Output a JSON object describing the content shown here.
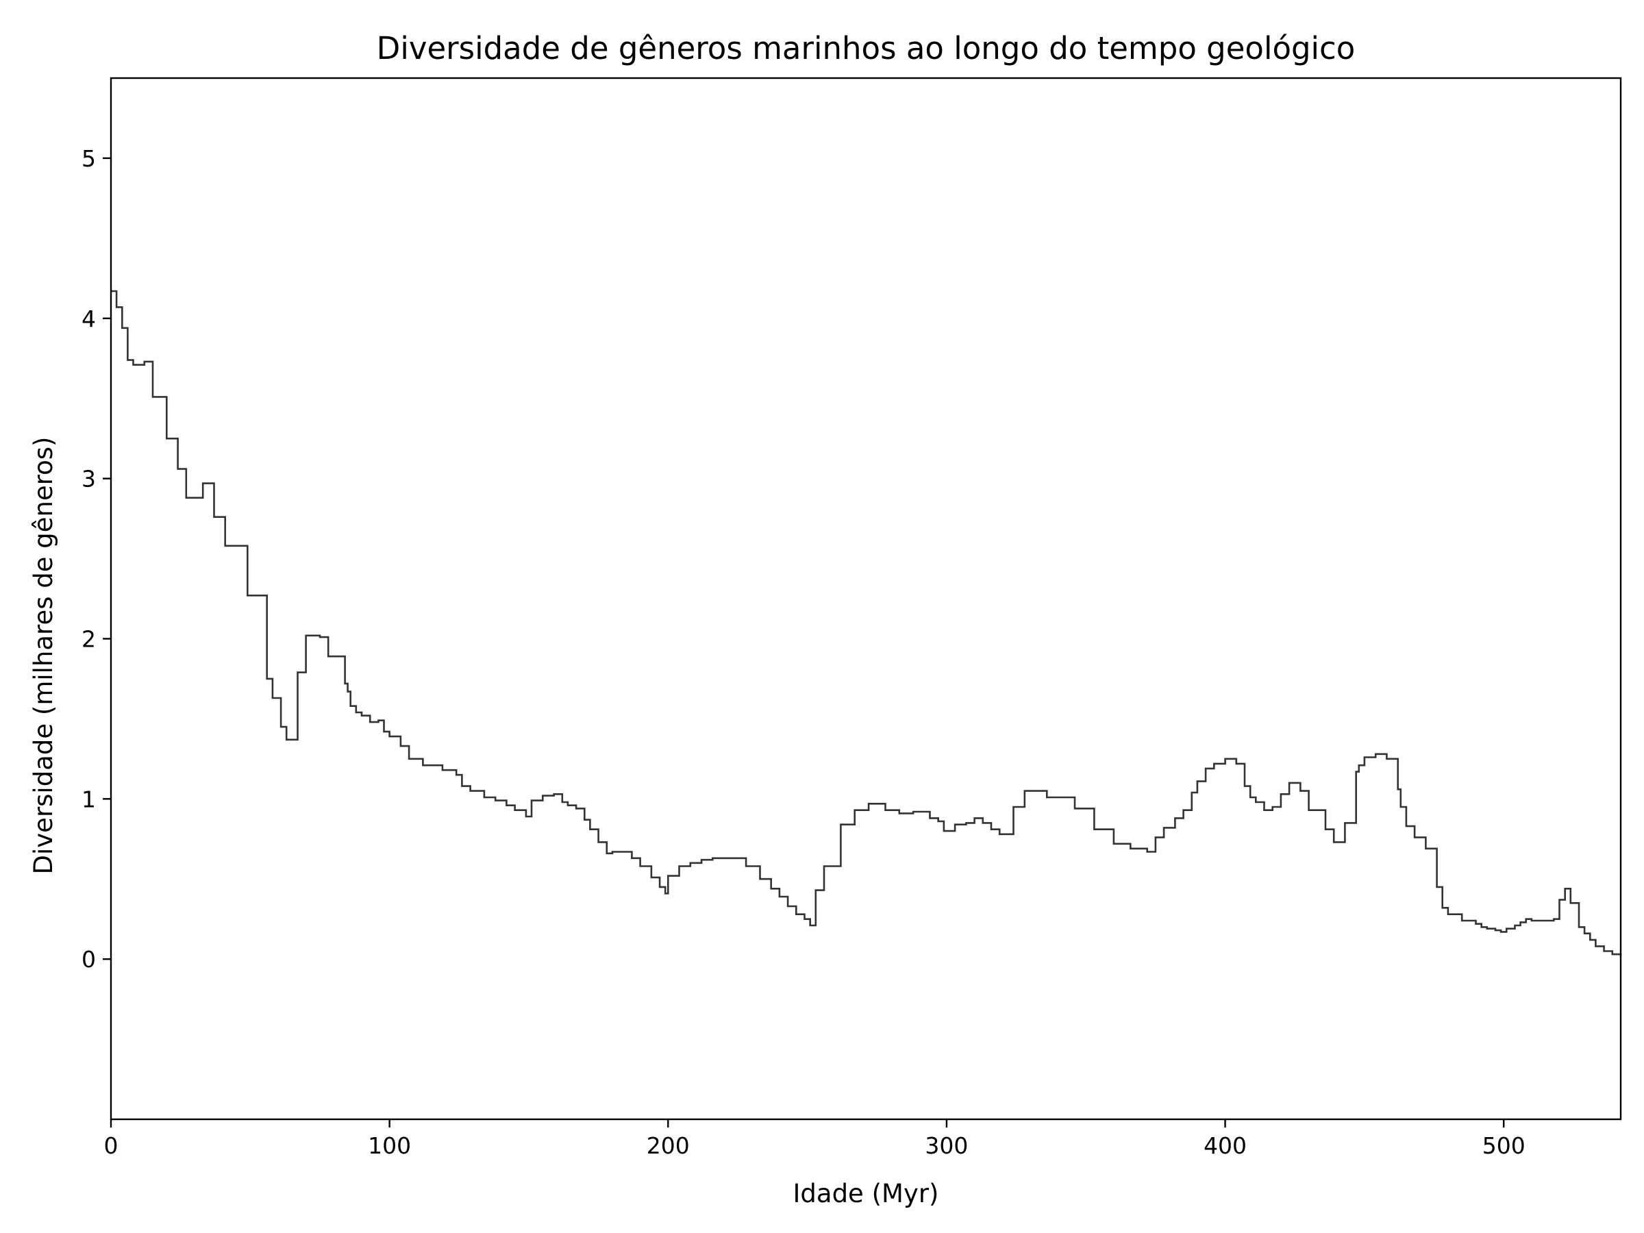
{
  "chart_data": {
    "type": "line",
    "drawstyle": "steps",
    "title": "Diversidade de gêneros marinhos ao longo do tempo geológico",
    "xlabel": "Idade (Myr)",
    "ylabel": "Diversidade (milhares de gêneros)",
    "xlim": [
      0,
      542
    ],
    "ylim": [
      -1.0,
      5.5
    ],
    "xticks": [
      0,
      100,
      200,
      300,
      400,
      500
    ],
    "yticks": [
      0,
      1,
      2,
      3,
      4,
      5
    ],
    "grid": false,
    "line_color": "#333333",
    "series": [
      {
        "x": [
          0,
          2,
          4,
          6,
          8,
          10,
          12,
          15,
          20,
          24,
          27,
          33,
          37,
          41,
          49,
          56,
          58,
          61,
          63,
          67,
          70,
          75,
          78,
          84,
          85,
          86,
          88,
          90,
          93,
          96,
          98,
          100,
          104,
          107,
          112,
          119,
          124,
          126,
          129,
          134,
          138,
          142,
          145,
          149,
          151,
          155,
          159,
          162,
          164,
          167,
          170,
          172,
          175,
          178,
          180,
          187,
          190,
          194,
          197,
          199,
          200,
          204,
          208,
          212,
          216,
          221,
          228,
          233,
          237,
          240,
          243,
          246,
          249,
          251,
          253,
          256,
          262,
          267,
          272,
          278,
          283,
          288,
          294,
          297,
          299,
          303,
          307,
          310,
          313,
          316,
          319,
          324,
          328,
          336,
          346,
          353,
          360,
          366,
          372,
          375,
          378,
          382,
          385,
          388,
          390,
          393,
          396,
          400,
          404,
          407,
          409,
          411,
          414,
          417,
          420,
          423,
          427,
          430,
          436,
          439,
          443,
          447,
          448,
          450,
          454,
          458,
          462,
          463,
          465,
          468,
          472,
          476,
          478,
          480,
          485,
          490,
          492,
          494,
          497,
          499,
          501,
          504,
          506,
          508,
          510,
          518,
          520,
          522,
          524,
          527,
          529,
          531,
          533,
          536,
          539,
          542
        ],
        "y": [
          4.17,
          4.07,
          3.94,
          3.74,
          3.71,
          3.71,
          3.73,
          3.51,
          3.25,
          3.06,
          2.88,
          2.97,
          2.76,
          2.58,
          2.27,
          1.75,
          1.63,
          1.45,
          1.37,
          1.79,
          2.02,
          2.01,
          1.89,
          1.72,
          1.67,
          1.58,
          1.54,
          1.52,
          1.48,
          1.49,
          1.42,
          1.39,
          1.33,
          1.25,
          1.21,
          1.18,
          1.15,
          1.08,
          1.05,
          1.01,
          0.99,
          0.96,
          0.93,
          0.89,
          0.99,
          1.02,
          1.03,
          0.98,
          0.96,
          0.94,
          0.87,
          0.81,
          0.73,
          0.66,
          0.67,
          0.63,
          0.58,
          0.51,
          0.45,
          0.41,
          0.52,
          0.58,
          0.6,
          0.62,
          0.63,
          0.63,
          0.58,
          0.5,
          0.44,
          0.39,
          0.33,
          0.28,
          0.25,
          0.21,
          0.43,
          0.58,
          0.84,
          0.93,
          0.97,
          0.93,
          0.91,
          0.92,
          0.88,
          0.86,
          0.8,
          0.84,
          0.85,
          0.88,
          0.85,
          0.81,
          0.78,
          0.95,
          1.05,
          1.01,
          0.94,
          0.81,
          0.72,
          0.69,
          0.67,
          0.76,
          0.82,
          0.88,
          0.93,
          1.04,
          1.11,
          1.19,
          1.22,
          1.25,
          1.22,
          1.08,
          1.01,
          0.98,
          0.93,
          0.95,
          1.03,
          1.1,
          1.05,
          0.93,
          0.81,
          0.73,
          0.85,
          1.17,
          1.21,
          1.26,
          1.28,
          1.25,
          1.06,
          0.95,
          0.83,
          0.76,
          0.69,
          0.45,
          0.32,
          0.28,
          0.24,
          0.22,
          0.2,
          0.19,
          0.18,
          0.17,
          0.19,
          0.21,
          0.23,
          0.25,
          0.24,
          0.25,
          0.37,
          0.44,
          0.35,
          0.2,
          0.16,
          0.12,
          0.08,
          0.05,
          0.03,
          0.02
        ]
      }
    ]
  }
}
